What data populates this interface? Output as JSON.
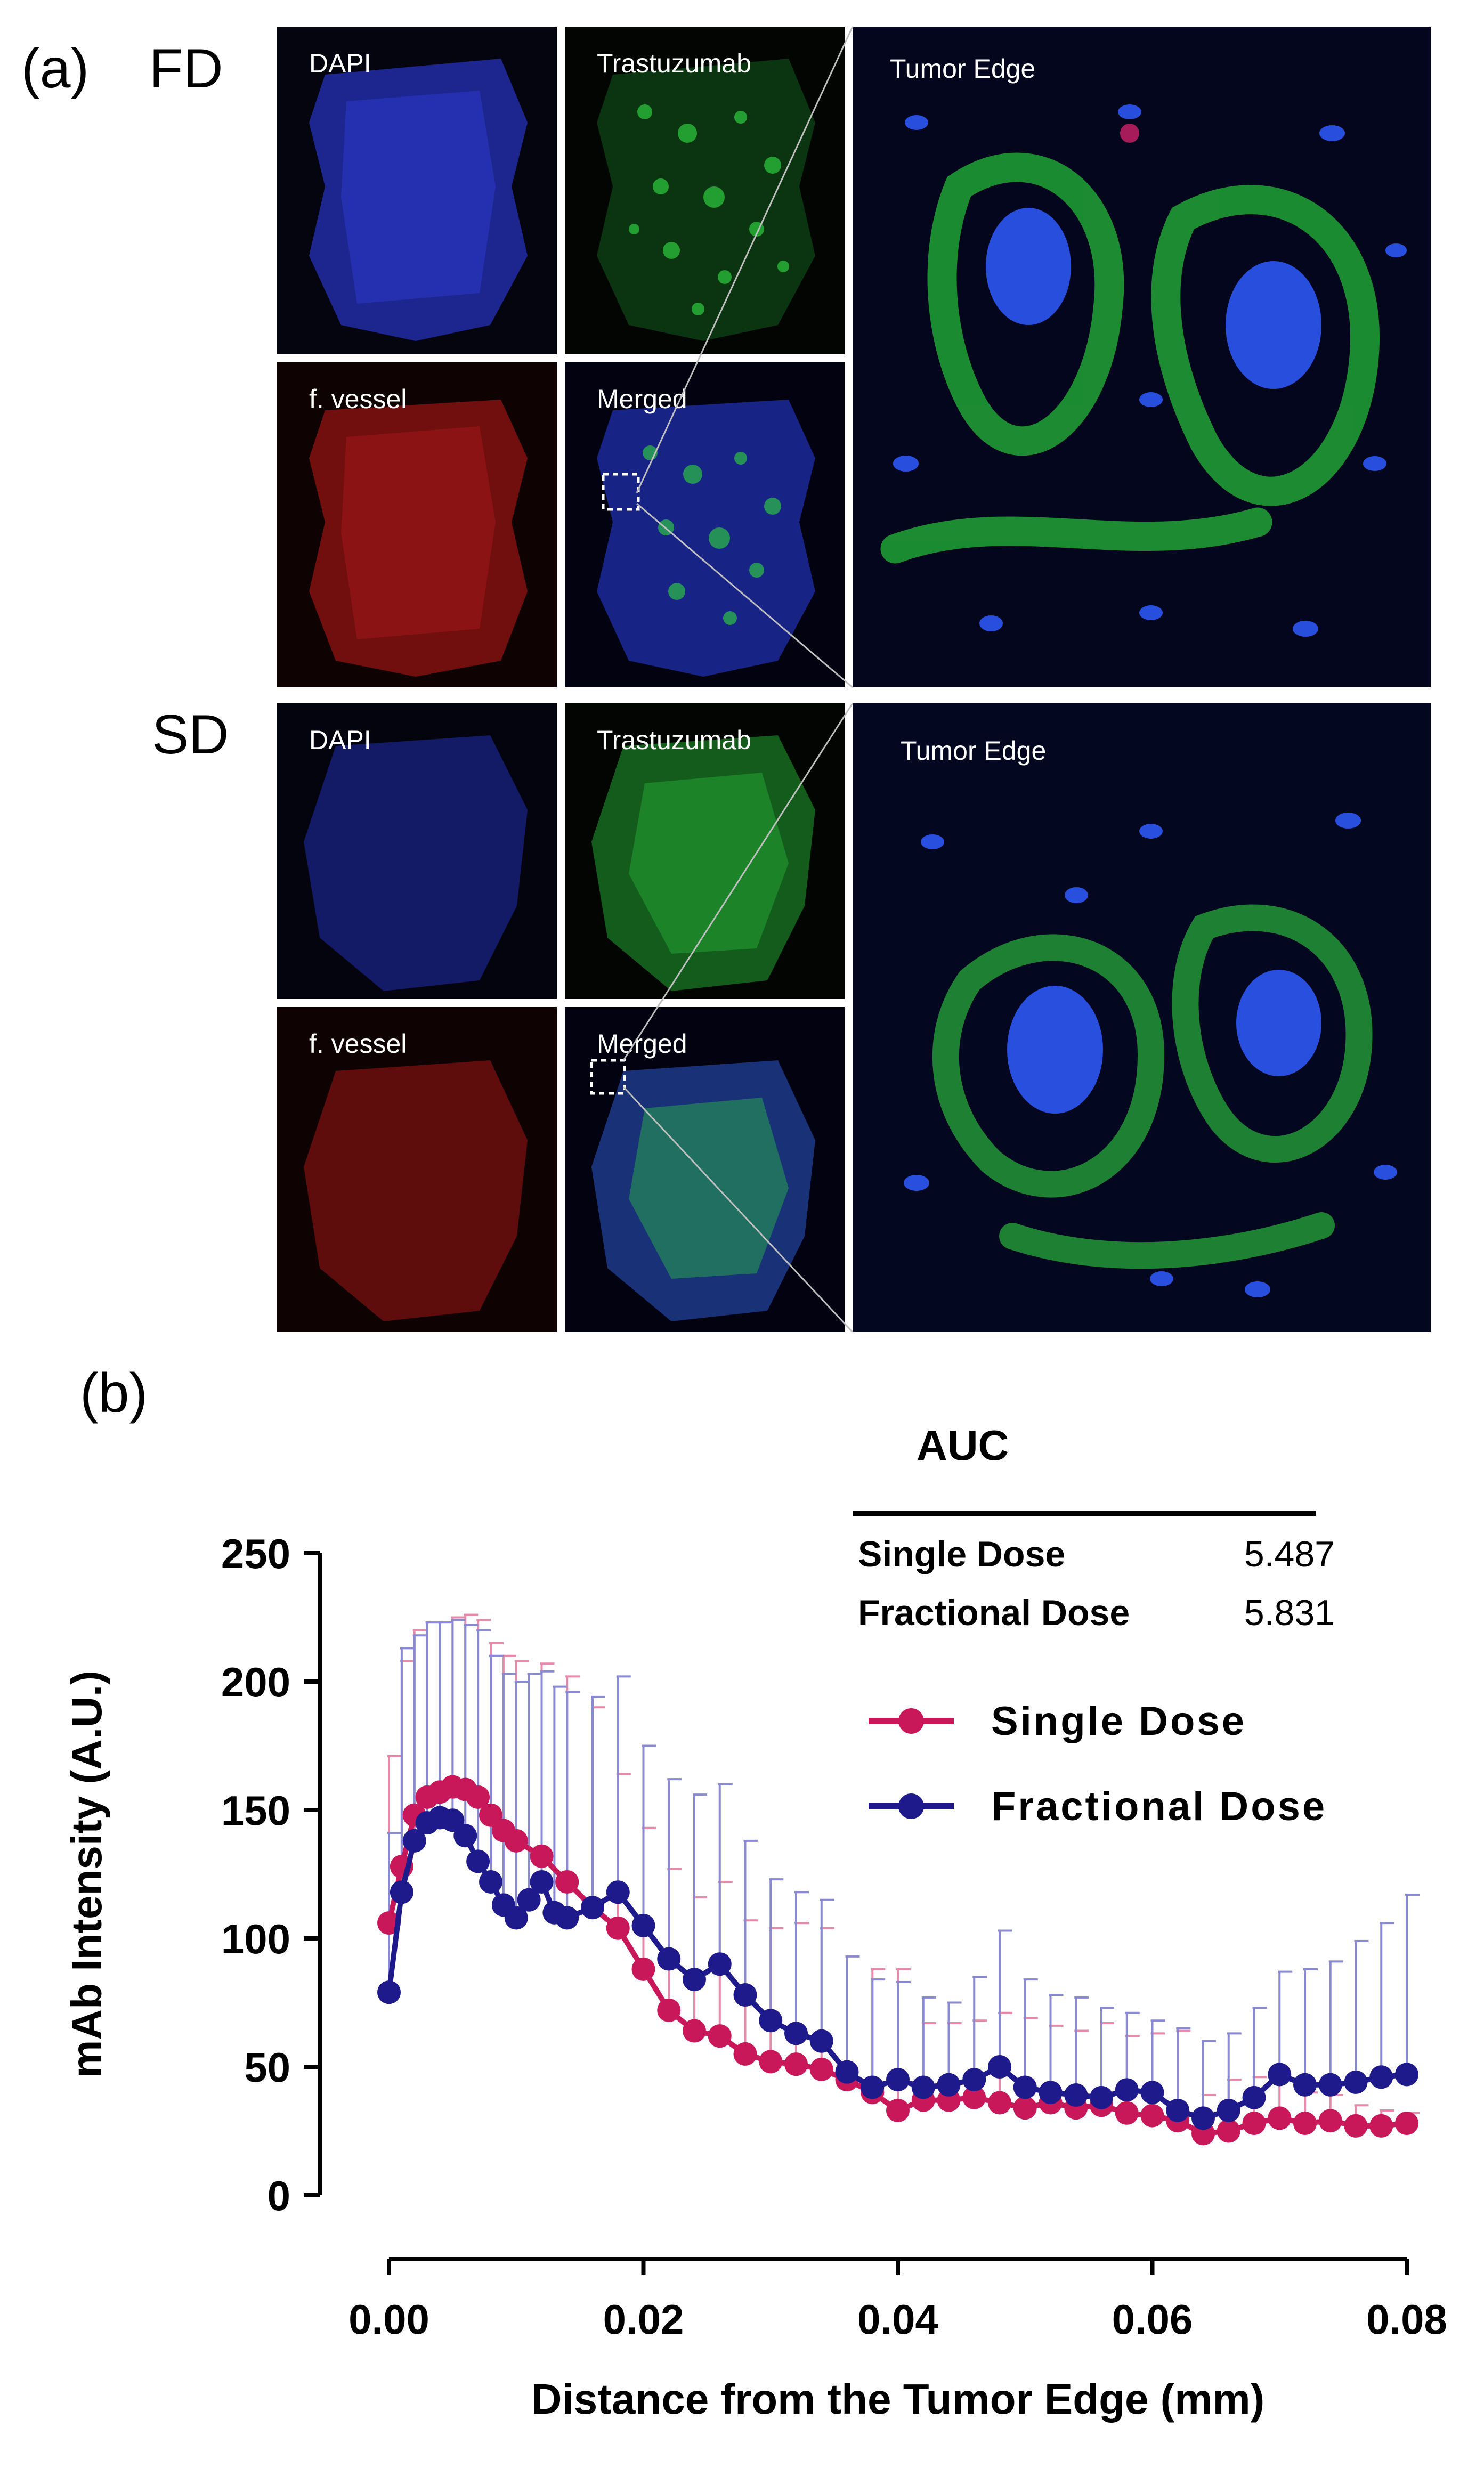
{
  "panel_a": {
    "label": "(a)",
    "groups": [
      {
        "name": "FD",
        "tiles": {
          "dapi": "DAPI",
          "mab": "Trastuzumab",
          "vessel": "f. vessel",
          "merged": "Merged"
        },
        "zoom_label": "Tumor Edge"
      },
      {
        "name": "SD",
        "tiles": {
          "dapi": "DAPI",
          "mab": "Trastuzumab",
          "vessel": "f. vessel",
          "merged": "Merged"
        },
        "zoom_label": "Tumor Edge"
      }
    ],
    "colors": {
      "dapi": "#1f2cc8",
      "mab": "#22c83a",
      "vessel": "#c81e1e"
    }
  },
  "panel_b": {
    "label": "(b)",
    "auc": {
      "title": "AUC",
      "rows": [
        {
          "name": "Single Dose",
          "value": "5.487"
        },
        {
          "name": "Fractional Dose",
          "value": "5.831"
        }
      ]
    }
  },
  "chart_data": {
    "type": "line",
    "xlabel": "Distance from the Tumor Edge (mm)",
    "ylabel": "mAb Intensity (A.U.)",
    "xlim": [
      0,
      0.08
    ],
    "ylim": [
      0,
      250
    ],
    "xticks": [
      "0.00",
      "0.02",
      "0.04",
      "0.06",
      "0.08"
    ],
    "yticks": [
      "0",
      "50",
      "100",
      "150",
      "200",
      "250"
    ],
    "legend_position": "top-right",
    "series": [
      {
        "name": "Single Dose",
        "color": "#c8185a",
        "errorbar_color": "#e58aa8",
        "x": [
          0.0,
          0.001,
          0.002,
          0.003,
          0.004,
          0.005,
          0.006,
          0.007,
          0.008,
          0.009,
          0.01,
          0.012,
          0.014,
          0.016,
          0.018,
          0.02,
          0.022,
          0.024,
          0.026,
          0.028,
          0.03,
          0.032,
          0.034,
          0.036,
          0.038,
          0.04,
          0.042,
          0.044,
          0.046,
          0.048,
          0.05,
          0.052,
          0.054,
          0.056,
          0.058,
          0.06,
          0.062,
          0.064,
          0.066,
          0.068,
          0.07,
          0.072,
          0.074,
          0.076,
          0.078,
          0.08
        ],
        "values": [
          106,
          128,
          148,
          155,
          157,
          159,
          158,
          155,
          148,
          142,
          138,
          132,
          122,
          112,
          104,
          88,
          72,
          64,
          62,
          55,
          52,
          51,
          49,
          45,
          40,
          33,
          37,
          37,
          38,
          36,
          34,
          36,
          34,
          35,
          32,
          31,
          29,
          24,
          25,
          28,
          30,
          28,
          29,
          27,
          27,
          28
        ],
        "error": [
          65,
          80,
          72,
          68,
          66,
          66,
          68,
          69,
          67,
          68,
          70,
          75,
          80,
          78,
          60,
          55,
          55,
          52,
          60,
          52,
          52,
          55,
          55,
          48,
          48,
          55,
          30,
          30,
          30,
          35,
          35,
          30,
          30,
          32,
          30,
          32,
          35,
          15,
          20,
          18,
          15,
          12,
          10,
          8,
          6,
          4
        ]
      },
      {
        "name": "Fractional Dose",
        "color": "#1e1a8c",
        "errorbar_color": "#8a8ad2",
        "x": [
          0.0,
          0.001,
          0.002,
          0.003,
          0.004,
          0.005,
          0.006,
          0.007,
          0.008,
          0.009,
          0.01,
          0.011,
          0.012,
          0.013,
          0.014,
          0.016,
          0.018,
          0.02,
          0.022,
          0.024,
          0.026,
          0.028,
          0.03,
          0.032,
          0.034,
          0.036,
          0.038,
          0.04,
          0.042,
          0.044,
          0.046,
          0.048,
          0.05,
          0.052,
          0.054,
          0.056,
          0.058,
          0.06,
          0.062,
          0.064,
          0.066,
          0.068,
          0.07,
          0.072,
          0.074,
          0.076,
          0.078,
          0.08
        ],
        "values": [
          79,
          118,
          138,
          145,
          147,
          146,
          140,
          130,
          122,
          113,
          108,
          115,
          122,
          110,
          108,
          112,
          118,
          105,
          92,
          84,
          90,
          78,
          68,
          63,
          60,
          48,
          42,
          45,
          42,
          43,
          45,
          50,
          42,
          40,
          39,
          38,
          41,
          40,
          33,
          30,
          33,
          38,
          47,
          43,
          43,
          44,
          46,
          47
        ],
        "error": [
          62,
          95,
          80,
          78,
          76,
          78,
          82,
          90,
          88,
          90,
          92,
          88,
          82,
          88,
          88,
          82,
          84,
          70,
          70,
          72,
          70,
          60,
          55,
          55,
          55,
          45,
          42,
          38,
          35,
          32,
          40,
          53,
          42,
          38,
          38,
          35,
          30,
          28,
          32,
          30,
          30,
          35,
          40,
          45,
          48,
          55,
          60,
          70
        ]
      }
    ]
  }
}
